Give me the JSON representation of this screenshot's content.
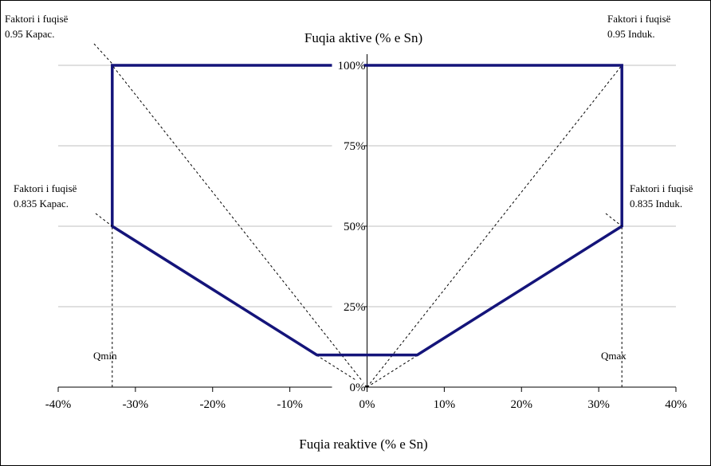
{
  "chart_data": {
    "type": "line",
    "xlabel": "Fuqia reaktive (% e Sn)",
    "ylabel": "Fuqia aktive (% e Sn)",
    "xlim": [
      -40,
      40
    ],
    "ylim": [
      0,
      100
    ],
    "x_ticks": [
      "-40%",
      "-30%",
      "-20%",
      "-10%",
      "0%",
      "10%",
      "20%",
      "30%",
      "40%"
    ],
    "x_tick_values": [
      -40,
      -30,
      -20,
      -10,
      0,
      10,
      20,
      30,
      40
    ],
    "y_ticks": [
      "0%",
      "25%",
      "50%",
      "75%",
      "100%"
    ],
    "y_tick_values": [
      0,
      25,
      50,
      75,
      100
    ],
    "grid": "horizontal",
    "series": [
      {
        "color": "#14147a",
        "x": [
          0,
          -33,
          -33,
          -6.5,
          6.5,
          33,
          33,
          0
        ],
        "y": [
          100,
          100,
          50,
          10,
          10,
          50,
          100,
          100
        ]
      }
    ],
    "guide_lines": [
      {
        "x": [
          0,
          -33
        ],
        "y": [
          0,
          100
        ]
      },
      {
        "x": [
          0,
          33
        ],
        "y": [
          0,
          100
        ]
      },
      {
        "x": [
          0,
          -33
        ],
        "y": [
          0,
          50
        ]
      },
      {
        "x": [
          0,
          33
        ],
        "y": [
          0,
          50
        ]
      },
      {
        "x": [
          -33,
          -33
        ],
        "y": [
          0,
          50
        ]
      },
      {
        "x": [
          33,
          33
        ],
        "y": [
          0,
          50
        ]
      }
    ],
    "annotations": [
      {
        "id": "pf095-cap",
        "lines": [
          "Faktori i fuqisë",
          "0.95 Kapac."
        ],
        "x": -33,
        "y": 100
      },
      {
        "id": "pf095-ind",
        "lines": [
          "Faktori i fuqisë",
          "0.95 Induk."
        ],
        "x": 33,
        "y": 100
      },
      {
        "id": "pf0835-cap",
        "lines": [
          "Faktori i fuqisë",
          "0.835 Kapac."
        ],
        "x": -33,
        "y": 50
      },
      {
        "id": "pf0835-ind",
        "lines": [
          "Faktori i fuqisë",
          "0.835 Induk."
        ],
        "x": 33,
        "y": 50
      },
      {
        "id": "qmin",
        "lines": [
          "Qmin"
        ],
        "x": -33,
        "y": 10
      },
      {
        "id": "qmax",
        "lines": [
          "Qmax"
        ],
        "x": 33,
        "y": 10
      }
    ]
  }
}
